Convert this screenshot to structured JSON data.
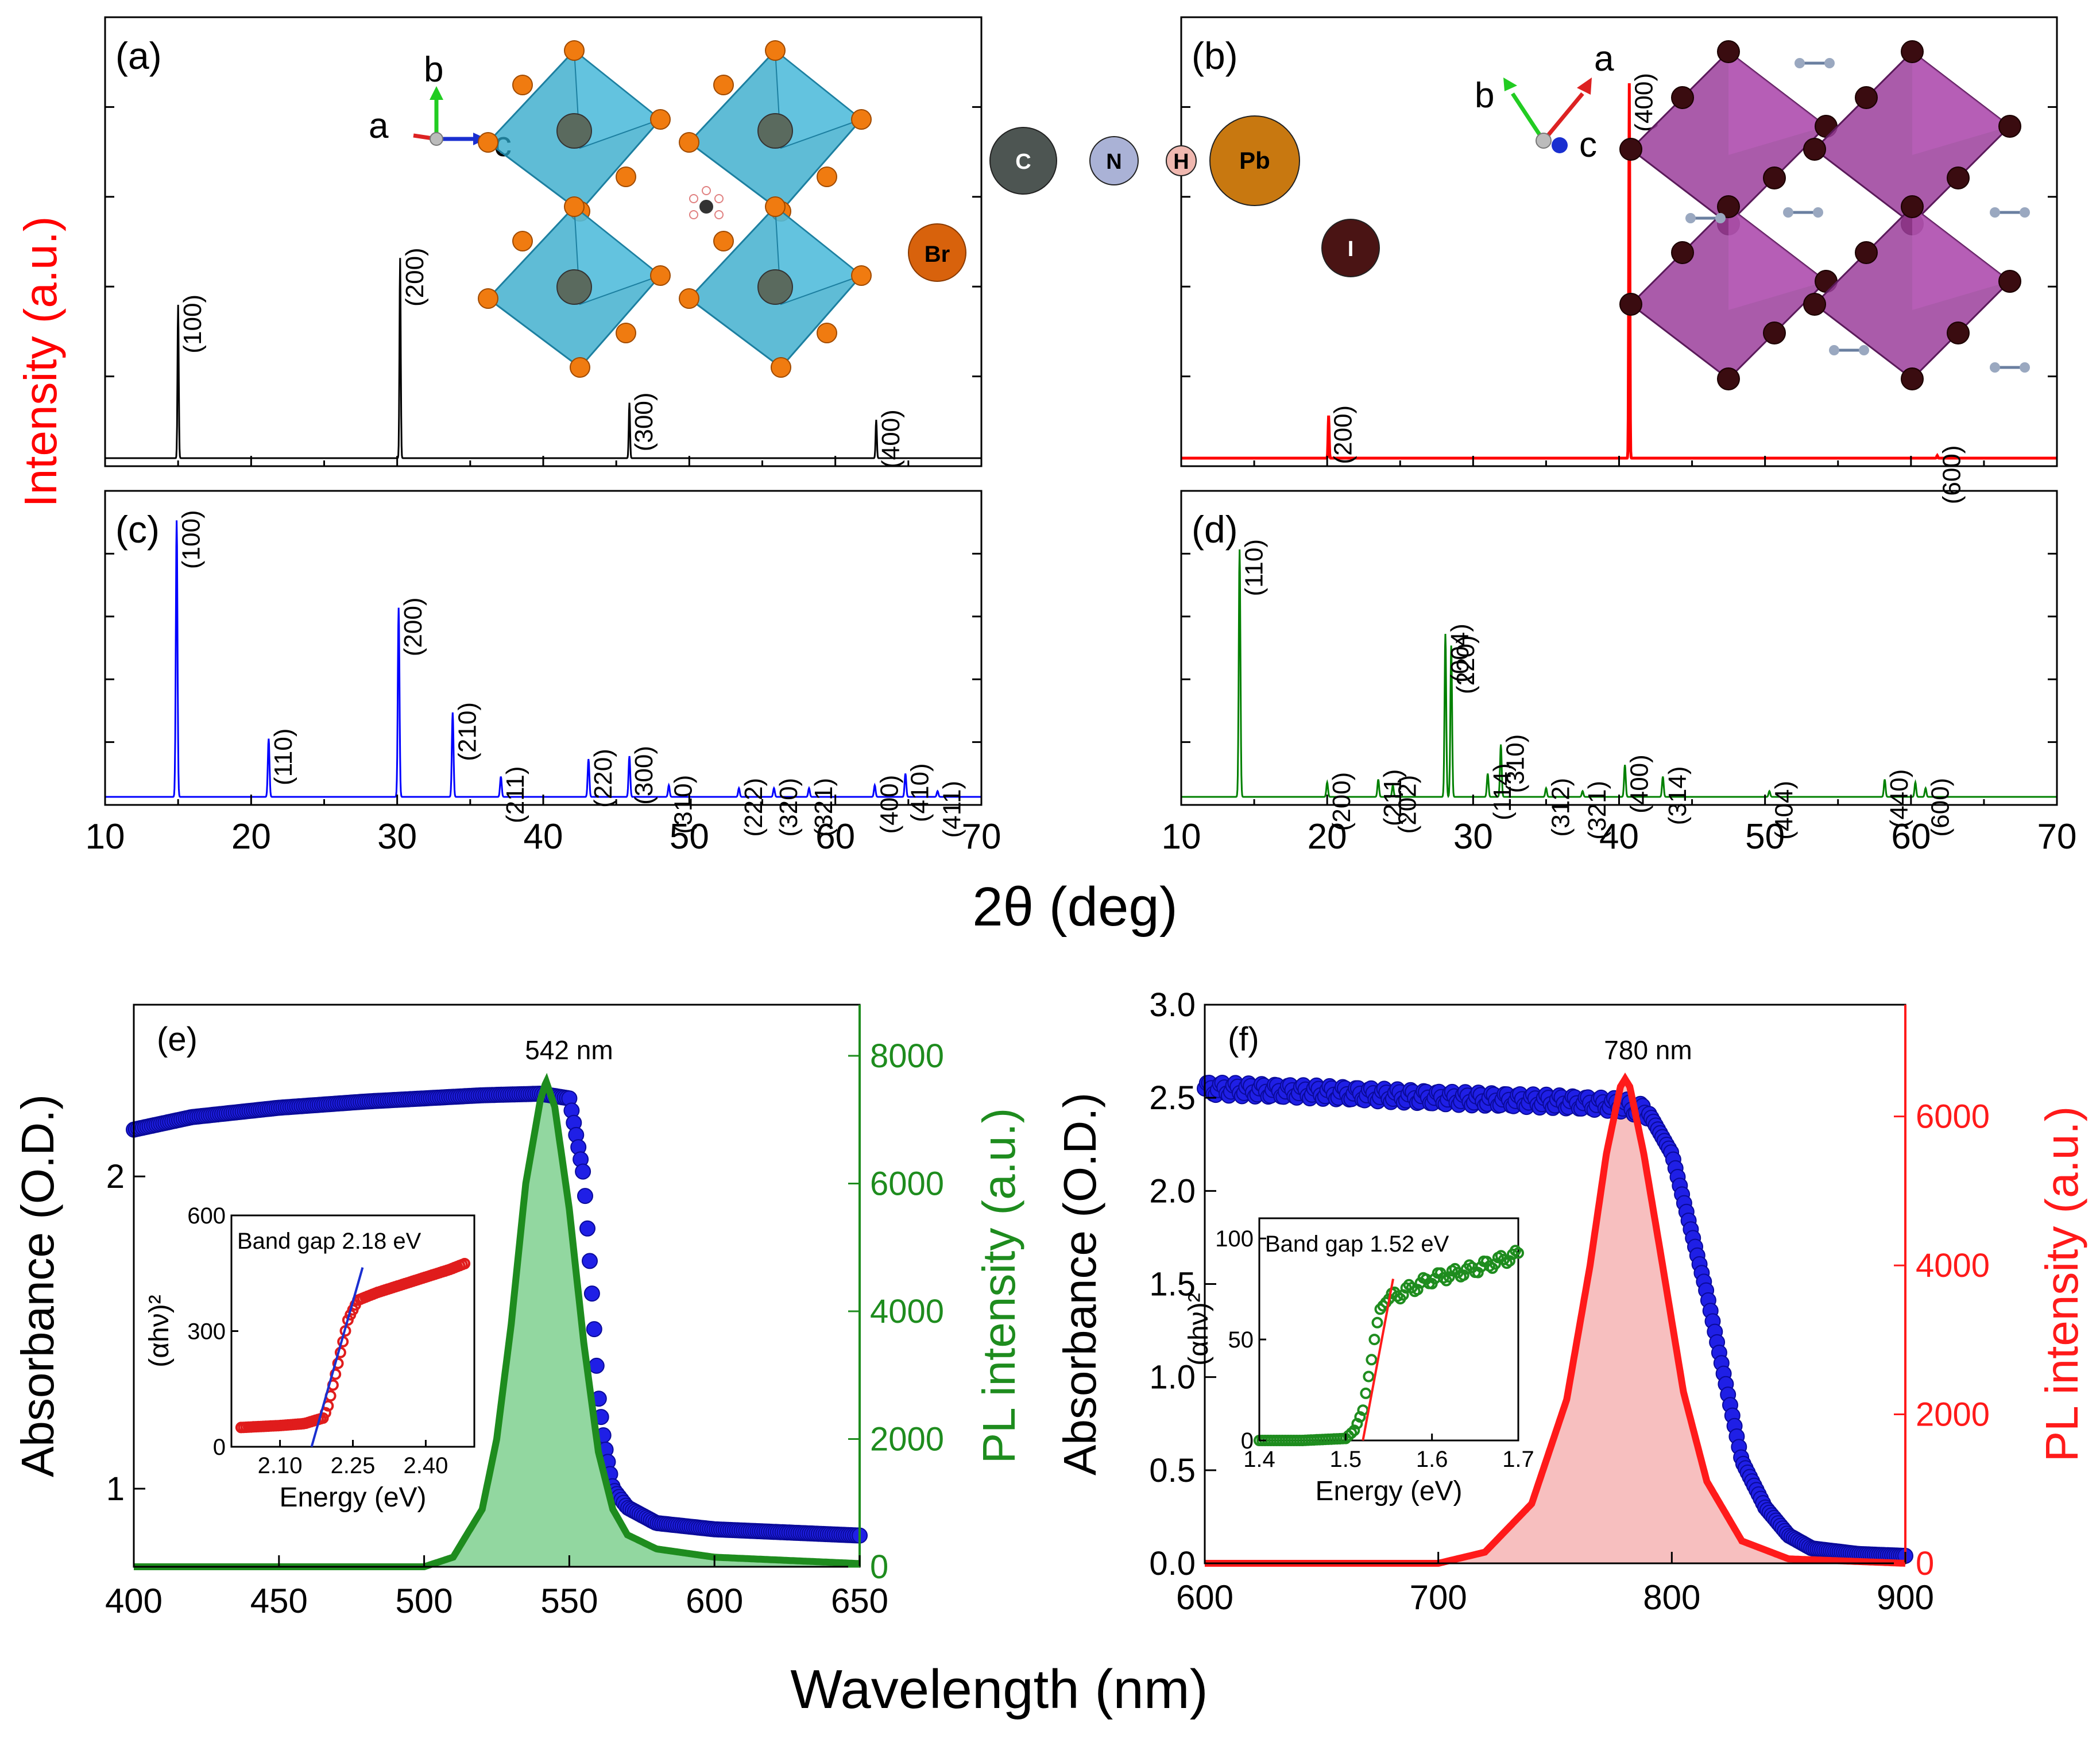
{
  "figure": {
    "shared_y_label": "Intensity (a.u.)",
    "xrd_x_label": "2θ (deg)",
    "optical_x_label": "Wavelength (nm)",
    "colors": {
      "xrd_a": "#000000",
      "xrd_b": "#ff0000",
      "xrd_c": "#0000ff",
      "xrd_d": "#008000",
      "abs": "#1f1fe6",
      "pl_e": "#1e8c1e",
      "pl_f": "#ff1a1a",
      "octa_blue": "#2aa6c8",
      "octa_purple": "#9b3e9b"
    }
  },
  "chart_data": [
    {
      "panel": "a",
      "type": "line",
      "letter": "(a)",
      "xlim": [
        10,
        70
      ],
      "xticks": [
        10,
        20,
        30,
        40,
        50,
        60,
        70
      ],
      "peaks": [
        {
          "x": 15.0,
          "h": 0.36,
          "label": "(100)"
        },
        {
          "x": 30.2,
          "h": 0.47,
          "label": "(200)"
        },
        {
          "x": 45.9,
          "h": 0.13,
          "label": "(300)"
        },
        {
          "x": 62.8,
          "h": 0.09,
          "label": "(400)"
        }
      ],
      "structure": {
        "axes": [
          "a",
          "b",
          "c"
        ],
        "atom_labels": [
          "Br"
        ]
      }
    },
    {
      "panel": "b",
      "type": "line",
      "letter": "(b)",
      "xlim": [
        10,
        70
      ],
      "xticks": [
        10,
        20,
        30,
        40,
        50,
        60,
        70
      ],
      "peaks": [
        {
          "x": 20.1,
          "h": 0.1,
          "label": "(200)"
        },
        {
          "x": 40.7,
          "h": 0.88,
          "label": "(400)"
        },
        {
          "x": 61.8,
          "h": 0.006,
          "label": "(600)"
        }
      ],
      "structure": {
        "axes": [
          "b",
          "a",
          "c"
        ],
        "atom_labels": [
          "C",
          "N",
          "H",
          "Pb",
          "I"
        ]
      }
    },
    {
      "panel": "c",
      "type": "line",
      "letter": "(c)",
      "xlim": [
        10,
        70
      ],
      "xticks": [
        "10",
        "20",
        "30",
        "40",
        "50",
        "60",
        "70"
      ],
      "peaks": [
        {
          "x": 14.9,
          "h": 0.95,
          "label": "(100)"
        },
        {
          "x": 21.2,
          "h": 0.2,
          "label": "(110)"
        },
        {
          "x": 30.1,
          "h": 0.65,
          "label": "(200)"
        },
        {
          "x": 33.8,
          "h": 0.29,
          "label": "(210)"
        },
        {
          "x": 37.1,
          "h": 0.07,
          "label": "(211)"
        },
        {
          "x": 43.1,
          "h": 0.13,
          "label": "(220)"
        },
        {
          "x": 45.9,
          "h": 0.14,
          "label": "(300)"
        },
        {
          "x": 48.6,
          "h": 0.04,
          "label": "(310)"
        },
        {
          "x": 53.4,
          "h": 0.03,
          "label": "(222)"
        },
        {
          "x": 55.8,
          "h": 0.03,
          "label": "(320)"
        },
        {
          "x": 58.2,
          "h": 0.03,
          "label": "(321)"
        },
        {
          "x": 62.7,
          "h": 0.04,
          "label": "(400)"
        },
        {
          "x": 64.8,
          "h": 0.08,
          "label": "(410)"
        },
        {
          "x": 67.0,
          "h": 0.02,
          "label": "(411)"
        }
      ]
    },
    {
      "panel": "d",
      "type": "line",
      "letter": "(d)",
      "xlim": [
        10,
        70
      ],
      "xticks": [
        "10",
        "20",
        "30",
        "40",
        "50",
        "60",
        "70"
      ],
      "peaks": [
        {
          "x": 14.0,
          "h": 0.85,
          "label": "(110)"
        },
        {
          "x": 20.0,
          "h": 0.05,
          "label": "(200)"
        },
        {
          "x": 23.5,
          "h": 0.06,
          "label": "(211)"
        },
        {
          "x": 24.5,
          "h": 0.04,
          "label": "(202)"
        },
        {
          "x": 28.1,
          "h": 0.56,
          "label": "(004)"
        },
        {
          "x": 28.5,
          "h": 0.52,
          "label": "(220)"
        },
        {
          "x": 31.0,
          "h": 0.08,
          "label": "(114)"
        },
        {
          "x": 31.9,
          "h": 0.18,
          "label": "(310)"
        },
        {
          "x": 35.0,
          "h": 0.03,
          "label": "(312)"
        },
        {
          "x": 37.5,
          "h": 0.02,
          "label": "(321)"
        },
        {
          "x": 40.4,
          "h": 0.11,
          "label": "(400)"
        },
        {
          "x": 43.0,
          "h": 0.07,
          "label": "(314)"
        },
        {
          "x": 50.3,
          "h": 0.02,
          "label": "(404)"
        },
        {
          "x": 58.2,
          "h": 0.06,
          "label": "(440)"
        },
        {
          "x": 60.3,
          "h": 0.05,
          "label": ""
        },
        {
          "x": 61.0,
          "h": 0.03,
          "label": "(600)"
        }
      ]
    },
    {
      "panel": "e",
      "type": "line",
      "letter": "(e)",
      "peak_label": "542 nm",
      "xlim": [
        400,
        650
      ],
      "xticks": [
        "400",
        "450",
        "500",
        "550",
        "600",
        "650"
      ],
      "ylim_left": [
        0.75,
        2.55
      ],
      "yticks_left": [
        "1",
        "2"
      ],
      "ylabel_left": "Absorbance (O.D.)",
      "ylim_right": [
        0,
        8800
      ],
      "yticks_right": [
        "0",
        "2000",
        "4000",
        "6000",
        "8000"
      ],
      "ylabel_right": "PL intensity (a.u.)",
      "absorbance": {
        "x": [
          400,
          420,
          450,
          480,
          500,
          520,
          540,
          550,
          555,
          558,
          560,
          562,
          565,
          570,
          580,
          600,
          625,
          650
        ],
        "y": [
          2.15,
          2.19,
          2.22,
          2.24,
          2.25,
          2.26,
          2.265,
          2.25,
          2.0,
          1.6,
          1.3,
          1.15,
          1.0,
          0.94,
          0.89,
          0.87,
          0.86,
          0.85
        ]
      },
      "pl": {
        "x": [
          400,
          500,
          510,
          520,
          525,
          530,
          535,
          540,
          542,
          545,
          550,
          555,
          560,
          565,
          570,
          580,
          600,
          650
        ],
        "y": [
          0,
          0,
          150,
          900,
          2000,
          3800,
          6000,
          7300,
          7600,
          7200,
          5600,
          3500,
          1800,
          900,
          500,
          280,
          150,
          50
        ]
      },
      "inset": {
        "label": "Band gap 2.18 eV",
        "xlabel": "Energy (eV)",
        "ylabel": "(αhν)²",
        "xlim": [
          2.0,
          2.5
        ],
        "xticks": [
          "2.10",
          "2.25",
          "2.40"
        ],
        "ylim": [
          0,
          600
        ],
        "yticks": [
          "0",
          "300",
          "600"
        ],
        "data": {
          "x": [
            2.02,
            2.1,
            2.15,
            2.19,
            2.2,
            2.22,
            2.24,
            2.26,
            2.3,
            2.35,
            2.4,
            2.45,
            2.48
          ],
          "y": [
            50,
            55,
            60,
            75,
            110,
            220,
            330,
            380,
            400,
            420,
            440,
            460,
            475
          ]
        },
        "fit": {
          "x": [
            2.165,
            2.27
          ],
          "y": [
            0,
            465
          ]
        }
      }
    },
    {
      "panel": "f",
      "type": "line",
      "letter": "(f)",
      "peak_label": "780 nm",
      "xlim": [
        600,
        900
      ],
      "xticks": [
        "600",
        "700",
        "800",
        "900"
      ],
      "ylim_left": [
        0,
        3.0
      ],
      "yticks_left": [
        "0.0",
        "0.5",
        "1.0",
        "1.5",
        "2.0",
        "2.5",
        "3.0"
      ],
      "ylabel_left": "Absorbance (O.D.)",
      "ylim_right": [
        0,
        7500
      ],
      "yticks_right": [
        "0",
        "2000",
        "4000",
        "6000"
      ],
      "ylabel_right": "PL intensity (a.u.)",
      "absorbance": {
        "x": [
          600,
          650,
          700,
          750,
          780,
          790,
          800,
          805,
          810,
          815,
          820,
          825,
          830,
          840,
          850,
          860,
          880,
          900
        ],
        "y": [
          2.55,
          2.53,
          2.5,
          2.48,
          2.46,
          2.42,
          2.2,
          1.95,
          1.7,
          1.45,
          1.15,
          0.85,
          0.55,
          0.3,
          0.15,
          0.08,
          0.05,
          0.04
        ]
      },
      "pl": {
        "x": [
          600,
          700,
          720,
          740,
          755,
          765,
          772,
          778,
          780,
          782,
          788,
          795,
          805,
          815,
          830,
          850,
          900
        ],
        "y": [
          0,
          0,
          150,
          800,
          2200,
          4000,
          5500,
          6400,
          6500,
          6400,
          5500,
          4200,
          2300,
          1100,
          300,
          60,
          0
        ]
      },
      "inset": {
        "label": "Band gap 1.52 eV",
        "xlabel": "Energy (eV)",
        "ylabel": "(αhν)²",
        "xlim": [
          1.4,
          1.7
        ],
        "xticks": [
          "1.4",
          "1.5",
          "1.6",
          "1.7"
        ],
        "ylim": [
          0,
          110
        ],
        "yticks": [
          "0",
          "50",
          "100"
        ],
        "data": {
          "x": [
            1.4,
            1.45,
            1.5,
            1.51,
            1.52,
            1.53,
            1.535,
            1.54,
            1.55,
            1.56,
            1.6,
            1.65,
            1.7
          ],
          "y": [
            0,
            0,
            1,
            5,
            15,
            40,
            55,
            65,
            70,
            72,
            80,
            85,
            92
          ]
        },
        "fit": {
          "x": [
            1.52,
            1.555
          ],
          "y": [
            0,
            80
          ]
        }
      }
    }
  ]
}
